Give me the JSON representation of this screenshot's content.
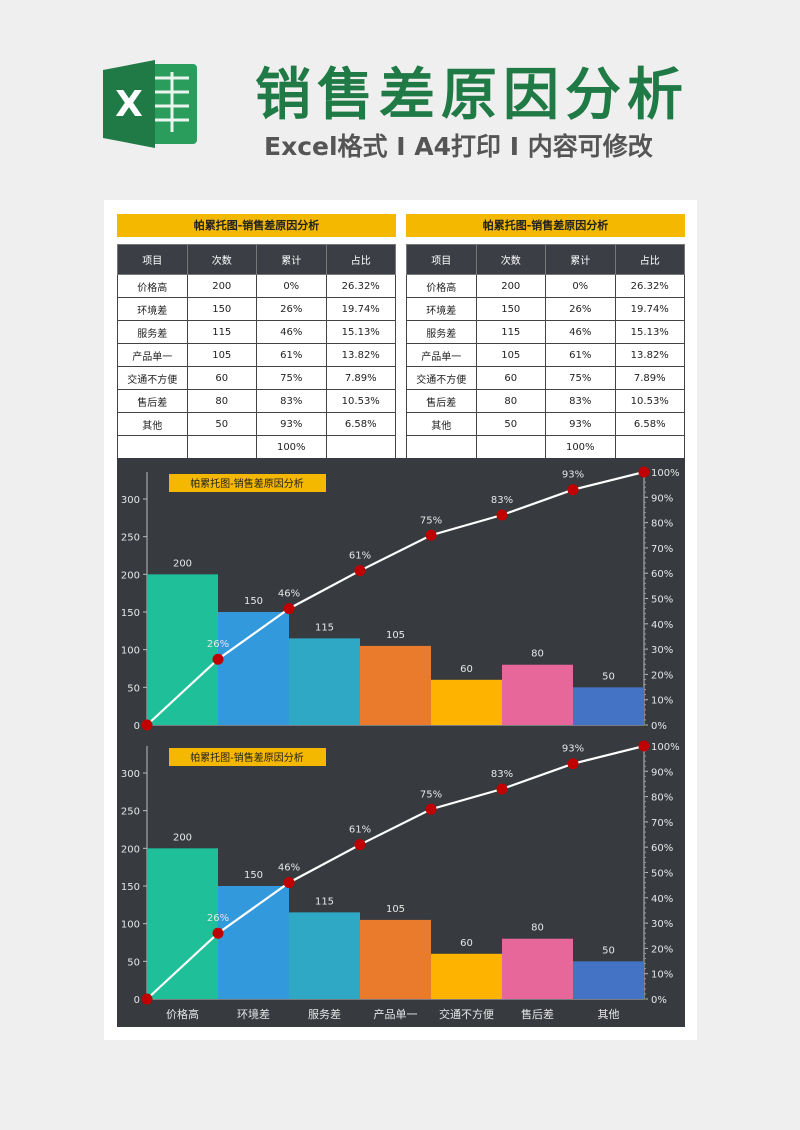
{
  "header": {
    "title": "销售差原因分析",
    "subtitle": "Excel格式 I A4打印 I 内容可修改",
    "logo_letter": "X"
  },
  "table_title": "帕累托图-销售差原因分析",
  "table_headers": [
    "项目",
    "次数",
    "累计",
    "占比"
  ],
  "table_rows": [
    [
      "价格高",
      "200",
      "0%",
      "26.32%"
    ],
    [
      "环境差",
      "150",
      "26%",
      "19.74%"
    ],
    [
      "服务差",
      "115",
      "46%",
      "15.13%"
    ],
    [
      "产品单一",
      "105",
      "61%",
      "13.82%"
    ],
    [
      "交通不方便",
      "60",
      "75%",
      "7.89%"
    ],
    [
      "售后差",
      "80",
      "83%",
      "10.53%"
    ],
    [
      "其他",
      "50",
      "93%",
      "6.58%"
    ],
    [
      "",
      "",
      "100%",
      ""
    ]
  ],
  "colors": {
    "title_green": "#1f7a45",
    "banner": "#f5b800",
    "chart_bg": "#373b40",
    "line": "#ffffff",
    "marker": "#c00000"
  },
  "chart_data": [
    {
      "type": "bar",
      "title": "帕累托图-销售差原因分析",
      "categories": [
        "价格高",
        "环境差",
        "服务差",
        "产品单一",
        "交通不方便",
        "售后差",
        "其他"
      ],
      "series": [
        {
          "values": [
            200,
            150,
            115,
            105,
            60,
            80,
            50
          ],
          "colors": [
            "#1fbf9a",
            "#3399dd",
            "#2ea8c4",
            "#ea7a2c",
            "#fdb300",
            "#e8679a",
            "#4472c4"
          ]
        },
        {
          "type": "line",
          "x": [
            "",
            "价格高",
            "环境差",
            "服务差",
            "产品单一",
            "交通不方便",
            "售后差",
            "其他"
          ],
          "values": [
            0,
            26,
            46,
            61,
            75,
            83,
            93,
            100
          ],
          "axis": "right"
        }
      ],
      "bar_labels": [
        "200",
        "150",
        "115",
        "105",
        "60",
        "80",
        "50"
      ],
      "line_labels": [
        "",
        "26%",
        "46%",
        "61%",
        "75%",
        "83%",
        "93%",
        ""
      ],
      "ylim": [
        0,
        300
      ],
      "yticks": [
        "0",
        "50",
        "100",
        "150",
        "200",
        "250",
        "300"
      ],
      "y2lim": [
        0,
        100
      ],
      "y2ticks": [
        "0%",
        "10%",
        "20%",
        "30%",
        "40%",
        "50%",
        "60%",
        "70%",
        "80%",
        "90%",
        "100%"
      ],
      "show_category_labels": false
    },
    {
      "type": "bar",
      "title": "帕累托图-销售差原因分析",
      "categories": [
        "价格高",
        "环境差",
        "服务差",
        "产品单一",
        "交通不方便",
        "售后差",
        "其他"
      ],
      "series": [
        {
          "values": [
            200,
            150,
            115,
            105,
            60,
            80,
            50
          ],
          "colors": [
            "#1fbf9a",
            "#3399dd",
            "#2ea8c4",
            "#ea7a2c",
            "#fdb300",
            "#e8679a",
            "#4472c4"
          ]
        },
        {
          "type": "line",
          "x": [
            "",
            "价格高",
            "环境差",
            "服务差",
            "产品单一",
            "交通不方便",
            "售后差",
            "其他"
          ],
          "values": [
            0,
            26,
            46,
            61,
            75,
            83,
            93,
            100
          ],
          "axis": "right"
        }
      ],
      "bar_labels": [
        "200",
        "150",
        "115",
        "105",
        "60",
        "80",
        "50"
      ],
      "line_labels": [
        "",
        "26%",
        "46%",
        "61%",
        "75%",
        "83%",
        "93%",
        ""
      ],
      "ylim": [
        0,
        300
      ],
      "yticks": [
        "0",
        "50",
        "100",
        "150",
        "200",
        "250",
        "300"
      ],
      "y2lim": [
        0,
        100
      ],
      "y2ticks": [
        "0%",
        "10%",
        "20%",
        "30%",
        "40%",
        "50%",
        "60%",
        "70%",
        "80%",
        "90%",
        "100%"
      ],
      "show_category_labels": true
    }
  ]
}
